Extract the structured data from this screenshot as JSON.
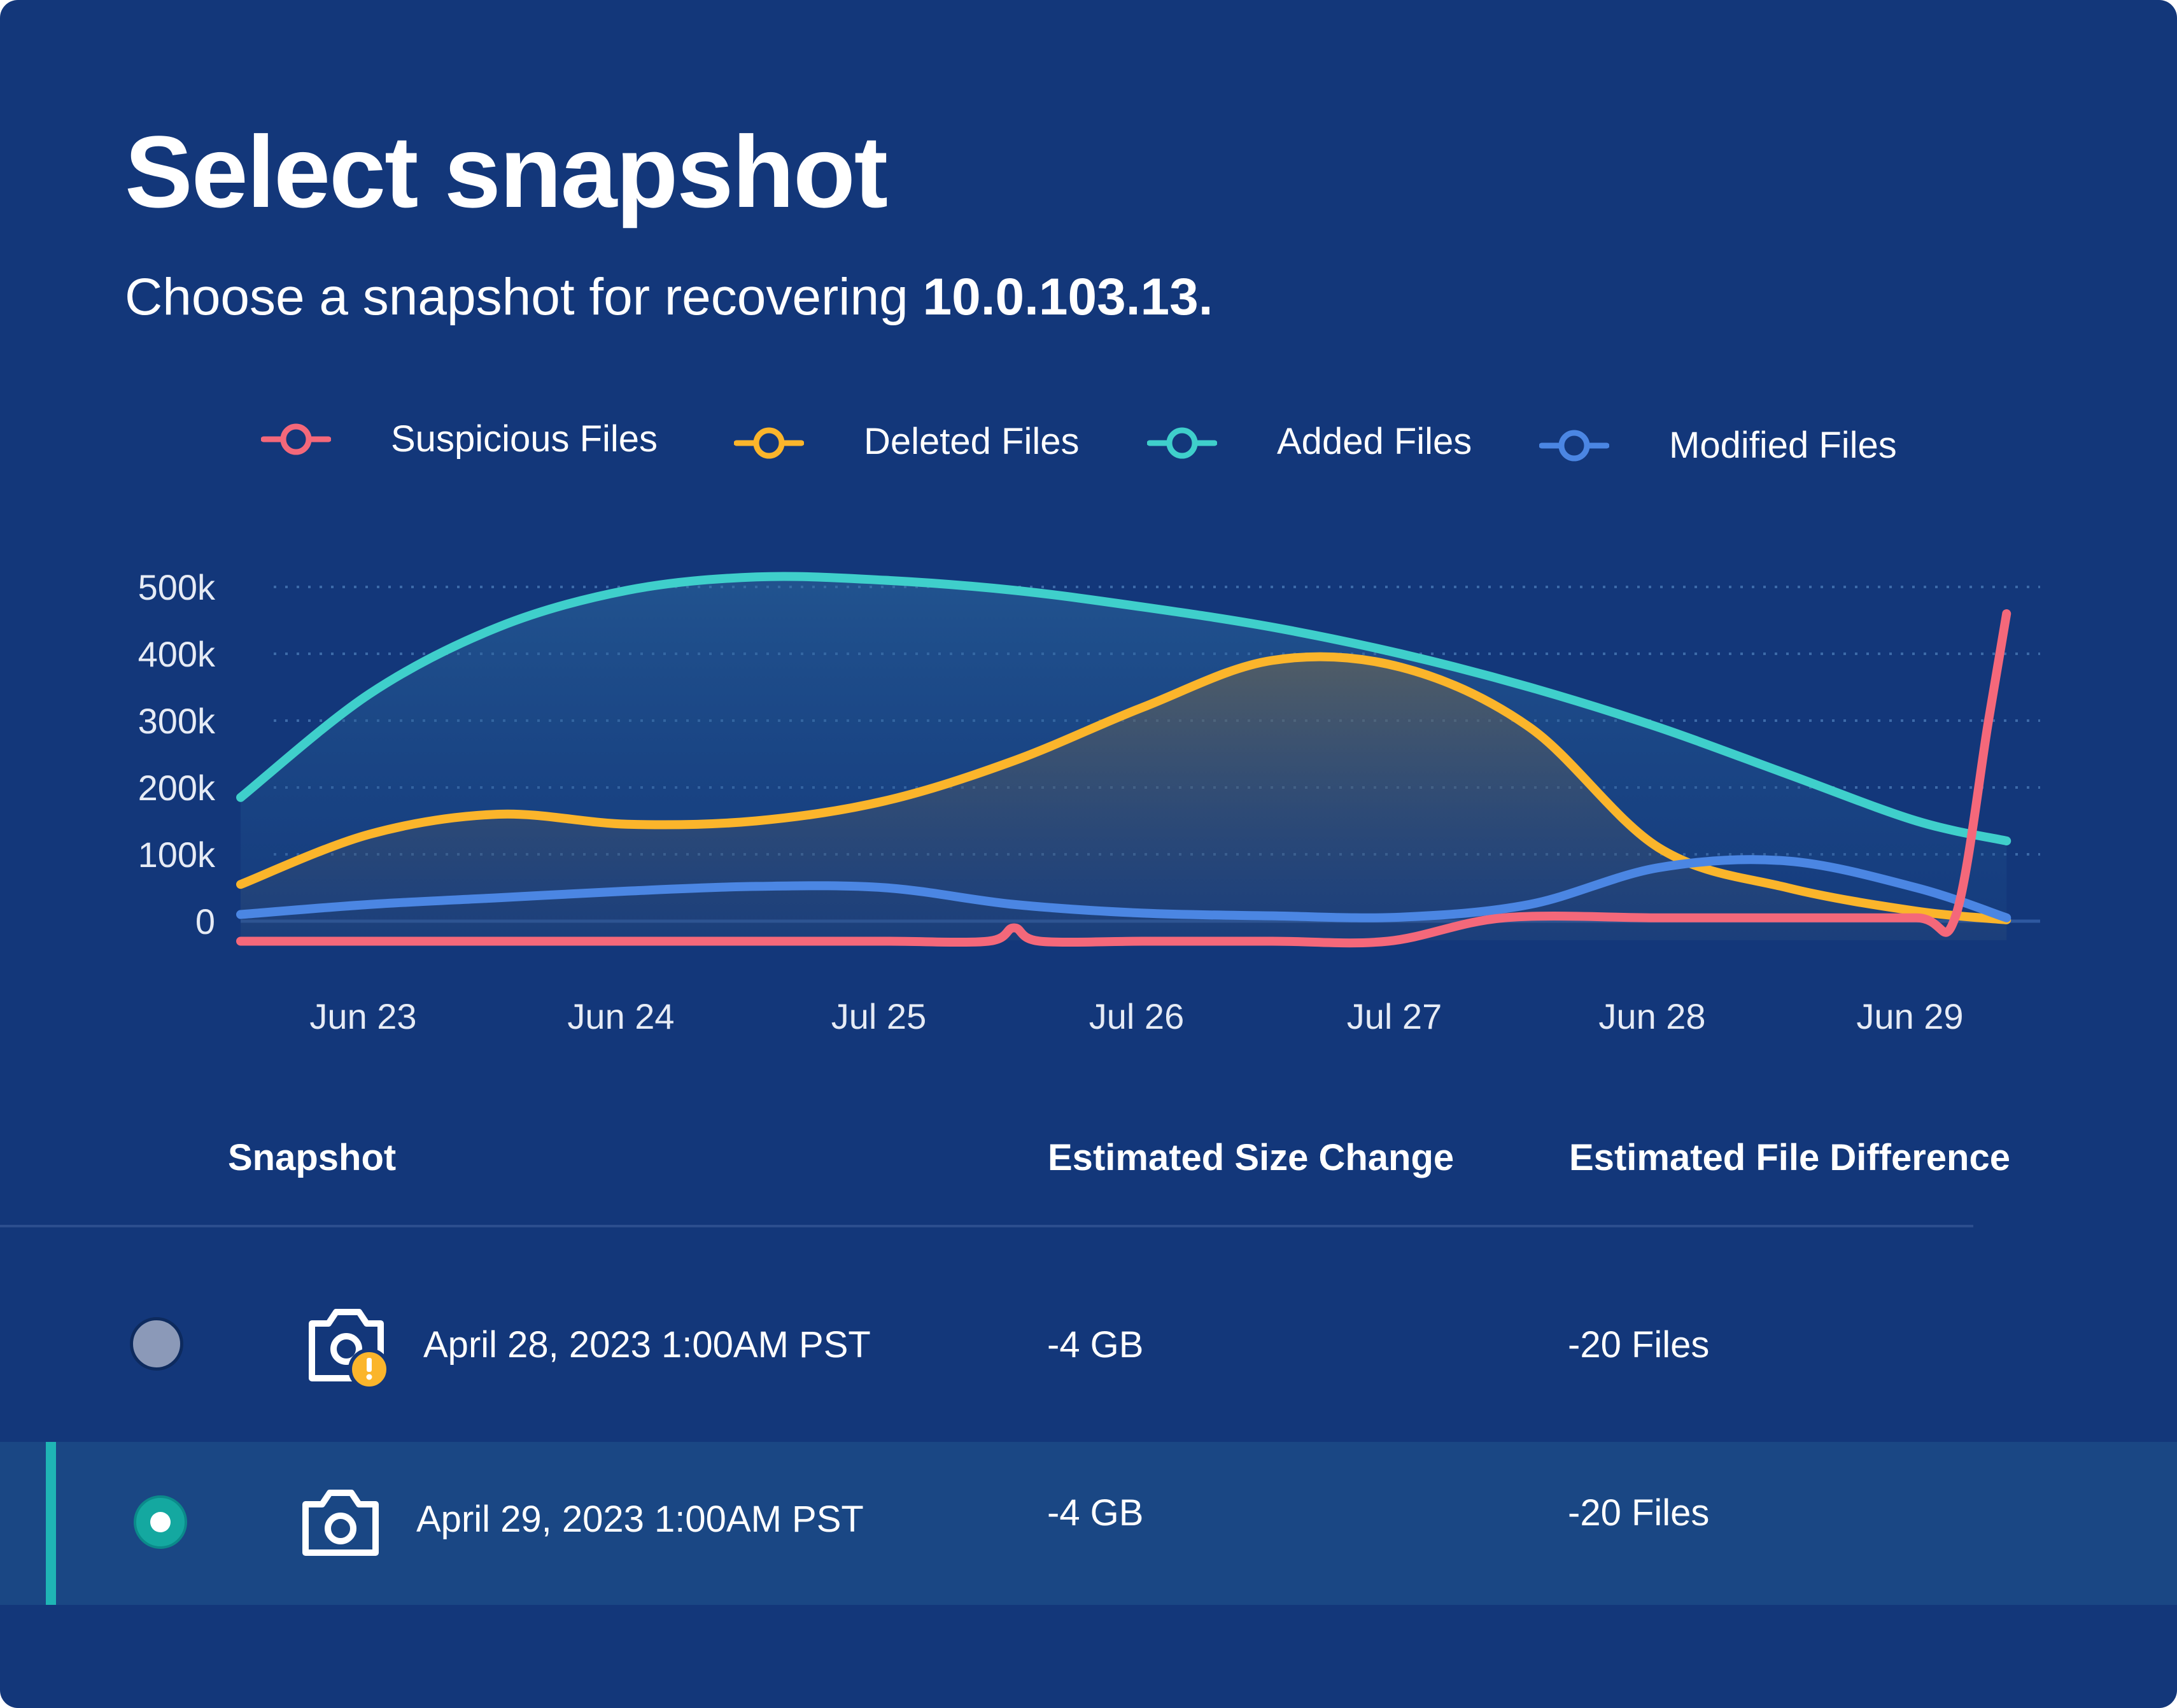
{
  "title": "Select snapshot",
  "subtitle": {
    "text": "Choose a snapshot for recovering ",
    "host": "10.0.103.13."
  },
  "legend": [
    {
      "label": "Suspicious Files",
      "color": "#f4687a"
    },
    {
      "label": "Deleted Files",
      "color": "#fbb52b"
    },
    {
      "label": "Added Files",
      "color": "#3fcfcb"
    },
    {
      "label": "Modified Files",
      "color": "#4b86e3"
    }
  ],
  "chart_data": {
    "type": "line",
    "x": [
      "Jun 23",
      "Jun 24",
      "Jul 25",
      "Jul 26",
      "Jul 27",
      "Jun 28",
      "Jun 29"
    ],
    "y_ticks": [
      "500k",
      "400k",
      "300k",
      "200k",
      "100k",
      "0"
    ],
    "ylim": [
      0,
      500000
    ],
    "grid": true,
    "legend_position": "top",
    "series": [
      {
        "name": "Suspicious Files",
        "color": "#f4687a",
        "values": [
          [
            22.5,
            -30000
          ],
          [
            23.0,
            -30000
          ],
          [
            23.5,
            -30000
          ],
          [
            24.0,
            -30000
          ],
          [
            24.5,
            -30000
          ],
          [
            25.0,
            -30000
          ],
          [
            25.4,
            -30000
          ],
          [
            25.5,
            -10000
          ],
          [
            25.6,
            -30000
          ],
          [
            26.0,
            -30000
          ],
          [
            26.5,
            -30000
          ],
          [
            26.95,
            -30000
          ],
          [
            27.4,
            5000
          ],
          [
            28.0,
            5000
          ],
          [
            28.5,
            5000
          ],
          [
            29.0,
            5000
          ],
          [
            29.15,
            5000
          ],
          [
            29.28,
            300000
          ],
          [
            29.35,
            460000
          ]
        ]
      },
      {
        "name": "Deleted Files",
        "color": "#fbb52b",
        "values": [
          [
            22.5,
            55000
          ],
          [
            23.0,
            130000
          ],
          [
            23.5,
            160000
          ],
          [
            24.0,
            145000
          ],
          [
            24.5,
            150000
          ],
          [
            25.0,
            180000
          ],
          [
            25.5,
            240000
          ],
          [
            26.0,
            320000
          ],
          [
            26.5,
            390000
          ],
          [
            27.0,
            380000
          ],
          [
            27.5,
            290000
          ],
          [
            28.0,
            110000
          ],
          [
            28.5,
            50000
          ],
          [
            29.0,
            15000
          ],
          [
            29.35,
            2000
          ]
        ]
      },
      {
        "name": "Added Files",
        "color": "#3fcfcb",
        "values": [
          [
            22.5,
            185000
          ],
          [
            23.0,
            340000
          ],
          [
            23.5,
            440000
          ],
          [
            24.0,
            495000
          ],
          [
            24.5,
            515000
          ],
          [
            25.0,
            510000
          ],
          [
            25.5,
            495000
          ],
          [
            26.0,
            470000
          ],
          [
            26.5,
            440000
          ],
          [
            27.0,
            400000
          ],
          [
            27.5,
            350000
          ],
          [
            28.0,
            290000
          ],
          [
            28.5,
            220000
          ],
          [
            29.0,
            150000
          ],
          [
            29.35,
            120000
          ]
        ]
      },
      {
        "name": "Modified Files",
        "color": "#4b86e3",
        "values": [
          [
            22.5,
            10000
          ],
          [
            23.0,
            25000
          ],
          [
            23.5,
            35000
          ],
          [
            24.0,
            45000
          ],
          [
            24.5,
            52000
          ],
          [
            25.0,
            50000
          ],
          [
            25.5,
            25000
          ],
          [
            26.0,
            12000
          ],
          [
            26.5,
            8000
          ],
          [
            27.0,
            6000
          ],
          [
            27.5,
            25000
          ],
          [
            28.0,
            80000
          ],
          [
            28.5,
            90000
          ],
          [
            29.0,
            50000
          ],
          [
            29.35,
            5000
          ]
        ]
      }
    ]
  },
  "table": {
    "columns": [
      "Snapshot",
      "Estimated Size Change",
      "Estimated File Difference"
    ],
    "rows": [
      {
        "date": "April 28, 2023 1:00AM PST",
        "size": "-4 GB",
        "files": "-20 Files",
        "selected": false,
        "warning": true
      },
      {
        "date": "April 29, 2023 1:00AM PST",
        "size": "-4 GB",
        "files": "-20 Files",
        "selected": true,
        "warning": false
      }
    ]
  },
  "icons": [
    "camera-icon",
    "camera-warning-icon",
    "legend-marker-icon"
  ]
}
